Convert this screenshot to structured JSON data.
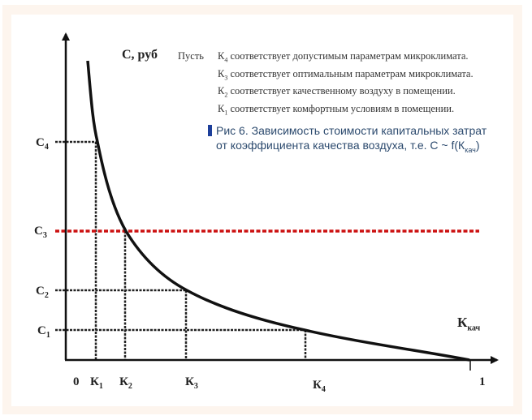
{
  "y_axis_label": "С, руб",
  "x_axis_label": {
    "main": "К",
    "sub": "кач"
  },
  "origin_label": "0",
  "x_end_label": "1",
  "x_ticks": [
    {
      "main": "К",
      "sub": "1"
    },
    {
      "main": "К",
      "sub": "2"
    },
    {
      "main": "К",
      "sub": "3"
    },
    {
      "main": "К",
      "sub": "4"
    }
  ],
  "y_ticks": [
    {
      "main": "С",
      "sub": "4"
    },
    {
      "main": "С",
      "sub": "3"
    },
    {
      "main": "С",
      "sub": "2"
    },
    {
      "main": "С",
      "sub": "1"
    }
  ],
  "note": {
    "prefix": "Пусть",
    "lines": [
      {
        "k": "К",
        "sub": "4",
        "text": " соответствует допустимым параметрам микроклимата."
      },
      {
        "k": "К",
        "sub": "3",
        "text": " соответствует оптимальным параметрам микроклимата."
      },
      {
        "k": "К",
        "sub": "2",
        "text": " соответствует качественному воздуху в помещении."
      },
      {
        "k": "К",
        "sub": "1",
        "text": " соответствует комфортным условиям в помещении."
      }
    ]
  },
  "caption": {
    "line1": "Рис 6. Зависимость стоимости капитальных затрат",
    "line2": "от коэффициента качества воздуха, т.е. С ~ f(К",
    "line2_sub": "кач",
    "line2_end": ")"
  },
  "colors": {
    "curve": "#111111",
    "highlight_line": "#cc1111",
    "caption": "#2c4a6e",
    "caption_bar": "#1d3f9a"
  }
}
